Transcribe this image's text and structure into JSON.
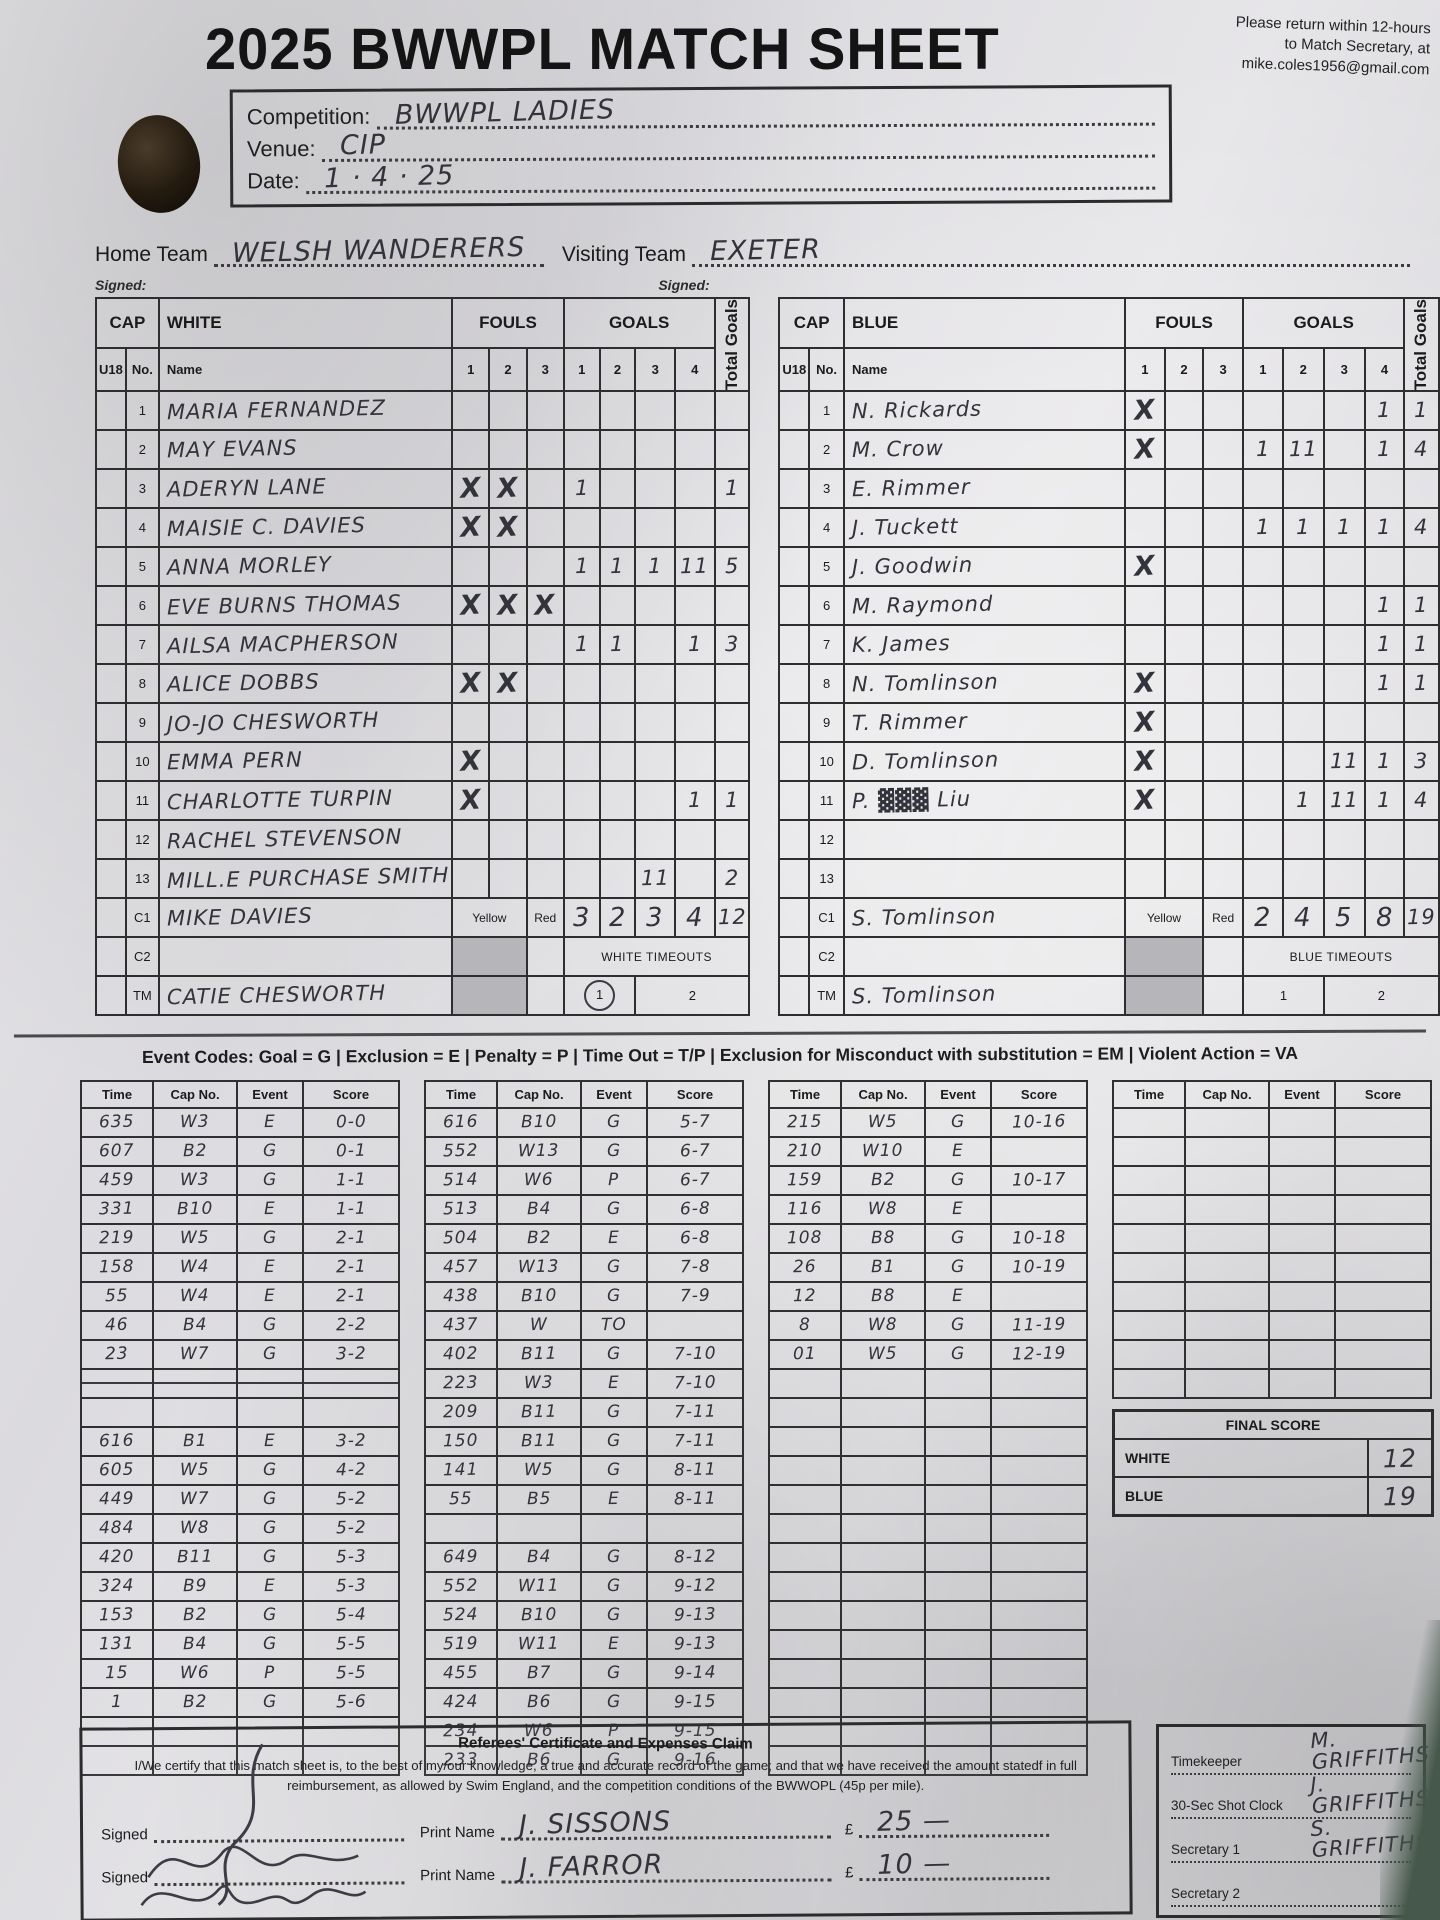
{
  "colors": {
    "ink": "#32333b",
    "paper": "#dfdee1",
    "shade": "#b6b5b9",
    "table_border": "#2e2e2e"
  },
  "header": {
    "title": "2025 BWWPL MATCH SHEET",
    "note_lines": [
      "Please return within 12-hours",
      "to Match Secretary, at",
      "mike.coles1956@gmail.com"
    ]
  },
  "info": {
    "competition_label": "Competition:",
    "competition_value": "BWWPL  LADIES",
    "venue_label": "Venue:",
    "venue_value": "CIP",
    "date_label": "Date:",
    "date_value": "1 · 4 · 25"
  },
  "teams": {
    "home_label": "Home Team",
    "home_value": "WELSH  WANDERERS",
    "visiting_label": "Visiting Team",
    "visiting_value": "EXETER",
    "signed_label": "Signed:"
  },
  "roster_headers": {
    "cap": "CAP",
    "u18": "U18",
    "no": "No.",
    "name": "Name",
    "fouls": "FOULS",
    "goals": "GOALS",
    "total": "Total Goals",
    "foul_cols": [
      "1",
      "2",
      "3"
    ],
    "goal_cols": [
      "1",
      "2",
      "3",
      "4"
    ],
    "yellow": "Yellow",
    "red": "Red",
    "c1": "C1",
    "c2": "C2",
    "tm": "TM"
  },
  "white_team": {
    "label": "WHITE",
    "timeouts_label": "WHITE TIMEOUTS",
    "timeout_1": "1",
    "timeout_2": "2",
    "timeout_1_circled": true,
    "players": [
      {
        "no": "1",
        "name": "MARIA FERNANDEZ",
        "fouls": [
          "",
          "",
          ""
        ],
        "goals": [
          "",
          "",
          "",
          ""
        ],
        "total": ""
      },
      {
        "no": "2",
        "name": "MAY EVANS",
        "fouls": [
          "",
          "",
          ""
        ],
        "goals": [
          "",
          "",
          "",
          ""
        ],
        "total": ""
      },
      {
        "no": "3",
        "name": "ADERYN LANE",
        "fouls": [
          "X",
          "X",
          ""
        ],
        "goals": [
          "1",
          "",
          "",
          ""
        ],
        "total": "1"
      },
      {
        "no": "4",
        "name": "MAISIE C. DAVIES",
        "fouls": [
          "X",
          "X",
          ""
        ],
        "goals": [
          "",
          "",
          "",
          ""
        ],
        "total": ""
      },
      {
        "no": "5",
        "name": "ANNA MORLEY",
        "fouls": [
          "",
          "",
          ""
        ],
        "goals": [
          "1",
          "1",
          "1",
          "11"
        ],
        "total": "5"
      },
      {
        "no": "6",
        "name": "EVE BURNS THOMAS",
        "fouls": [
          "X",
          "X",
          "X"
        ],
        "goals": [
          "",
          "",
          "",
          ""
        ],
        "total": ""
      },
      {
        "no": "7",
        "name": "AILSA MACPHERSON",
        "fouls": [
          "",
          "",
          ""
        ],
        "goals": [
          "1",
          "1",
          "",
          "1"
        ],
        "total": "3"
      },
      {
        "no": "8",
        "name": "ALICE DOBBS",
        "fouls": [
          "X",
          "X",
          ""
        ],
        "goals": [
          "",
          "",
          "",
          ""
        ],
        "total": ""
      },
      {
        "no": "9",
        "name": "JO-JO CHESWORTH",
        "fouls": [
          "",
          "",
          ""
        ],
        "goals": [
          "",
          "",
          "",
          ""
        ],
        "total": ""
      },
      {
        "no": "10",
        "name": "EMMA PERN",
        "fouls": [
          "X",
          "",
          ""
        ],
        "goals": [
          "",
          "",
          "",
          ""
        ],
        "total": ""
      },
      {
        "no": "11",
        "name": "CHARLOTTE TURPIN",
        "fouls": [
          "X",
          "",
          ""
        ],
        "goals": [
          "",
          "",
          "",
          "1"
        ],
        "total": "1"
      },
      {
        "no": "12",
        "name": "RACHEL STEVENSON",
        "fouls": [
          "",
          "",
          ""
        ],
        "goals": [
          "",
          "",
          "",
          ""
        ],
        "total": ""
      },
      {
        "no": "13",
        "name": "MILL.E PURCHASE SMITH",
        "fouls": [
          "",
          "",
          ""
        ],
        "goals": [
          "",
          "",
          "11",
          ""
        ],
        "total": "2"
      }
    ],
    "c1_name": "MIKE DAVIES",
    "c1_quarters": [
      "3",
      "2",
      "3",
      "4"
    ],
    "c1_total": "12",
    "tm_name": "CATIE CHESWORTH"
  },
  "blue_team": {
    "label": "BLUE",
    "timeouts_label": "BLUE TIMEOUTS",
    "timeout_1": "1",
    "timeout_2": "2",
    "timeout_1_circled": false,
    "players": [
      {
        "no": "1",
        "name": "N. Rickards",
        "fouls": [
          "X",
          "",
          ""
        ],
        "goals": [
          "",
          "",
          "",
          "1"
        ],
        "total": "1"
      },
      {
        "no": "2",
        "name": "M. Crow",
        "fouls": [
          "X",
          "",
          ""
        ],
        "goals": [
          "1",
          "11",
          "",
          "1"
        ],
        "total": "4"
      },
      {
        "no": "3",
        "name": "E. Rimmer",
        "fouls": [
          "",
          "",
          ""
        ],
        "goals": [
          "",
          "",
          "",
          ""
        ],
        "total": ""
      },
      {
        "no": "4",
        "name": "J. Tuckett",
        "fouls": [
          "",
          "",
          ""
        ],
        "goals": [
          "1",
          "1",
          "1",
          "1"
        ],
        "total": "4"
      },
      {
        "no": "5",
        "name": "J. Goodwin",
        "fouls": [
          "X",
          "",
          ""
        ],
        "goals": [
          "",
          "",
          "",
          ""
        ],
        "total": ""
      },
      {
        "no": "6",
        "name": "M. Raymond",
        "fouls": [
          "",
          "",
          ""
        ],
        "goals": [
          "",
          "",
          "",
          "1"
        ],
        "total": "1"
      },
      {
        "no": "7",
        "name": "K. James",
        "fouls": [
          "",
          "",
          ""
        ],
        "goals": [
          "",
          "",
          "",
          "1"
        ],
        "total": "1"
      },
      {
        "no": "8",
        "name": "N. Tomlinson",
        "fouls": [
          "X",
          "",
          ""
        ],
        "goals": [
          "",
          "",
          "",
          "1"
        ],
        "total": "1"
      },
      {
        "no": "9",
        "name": "T. Rimmer",
        "fouls": [
          "X",
          "",
          ""
        ],
        "goals": [
          "",
          "",
          "",
          ""
        ],
        "total": ""
      },
      {
        "no": "10",
        "name": "D. Tomlinson",
        "fouls": [
          "X",
          "",
          ""
        ],
        "goals": [
          "",
          "",
          "11",
          "1"
        ],
        "total": "3"
      },
      {
        "no": "11",
        "name": "P. ▓▓▓ Liu",
        "fouls": [
          "X",
          "",
          ""
        ],
        "goals": [
          "",
          "1",
          "11",
          "1"
        ],
        "total": "4"
      },
      {
        "no": "12",
        "name": "",
        "fouls": [
          "",
          "",
          ""
        ],
        "goals": [
          "",
          "",
          "",
          ""
        ],
        "total": ""
      },
      {
        "no": "13",
        "name": "",
        "fouls": [
          "",
          "",
          ""
        ],
        "goals": [
          "",
          "",
          "",
          ""
        ],
        "total": ""
      }
    ],
    "c1_name": "S. Tomlinson",
    "c1_quarters": [
      "2",
      "4",
      "5",
      "8"
    ],
    "c1_total": "19",
    "tm_name": "S. Tomlinson"
  },
  "event_codes": "Event Codes: Goal = G | Exclusion = E | Penalty = P | Time Out = T/P | Exclusion for Misconduct with substitution = EM | Violent Action = VA",
  "event_log": {
    "headers": [
      "Time",
      "Cap No.",
      "Event",
      "Score"
    ],
    "arrow": {
      "table": 0,
      "row": 9
    },
    "tables": [
      [
        [
          "635",
          "W3",
          "E",
          "0-0"
        ],
        [
          "607",
          "B2",
          "G",
          "0-1"
        ],
        [
          "459",
          "W3",
          "G",
          "1-1"
        ],
        [
          "331",
          "B10",
          "E",
          "1-1"
        ],
        [
          "219",
          "W5",
          "G",
          "2-1"
        ],
        [
          "158",
          "W4",
          "E",
          "2-1"
        ],
        [
          "55",
          "W4",
          "E",
          "2-1"
        ],
        [
          "46",
          "B4",
          "G",
          "2-2"
        ],
        [
          "23",
          "W7",
          "G",
          "3-2"
        ],
        [
          "",
          "",
          "",
          ""
        ],
        [
          "",
          "",
          "",
          ""
        ],
        [
          "616",
          "B1",
          "E",
          "3-2"
        ],
        [
          "605",
          "W5",
          "G",
          "4-2"
        ],
        [
          "449",
          "W7",
          "G",
          "5-2"
        ],
        [
          "484",
          "W8",
          "G",
          "5-2"
        ],
        [
          "420",
          "B11",
          "G",
          "5-3"
        ],
        [
          "324",
          "B9",
          "E",
          "5-3"
        ],
        [
          "153",
          "B2",
          "G",
          "5-4"
        ],
        [
          "131",
          "B4",
          "G",
          "5-5"
        ],
        [
          "15",
          "W6",
          "P",
          "5-5"
        ],
        [
          "1",
          "B2",
          "G",
          "5-6"
        ],
        [
          "",
          "",
          "",
          ""
        ],
        [
          "",
          "",
          "",
          ""
        ]
      ],
      [
        [
          "616",
          "B10",
          "G",
          "5-7"
        ],
        [
          "552",
          "W13",
          "G",
          "6-7"
        ],
        [
          "514",
          "W6",
          "P",
          "6-7"
        ],
        [
          "513",
          "B4",
          "G",
          "6-8"
        ],
        [
          "504",
          "B2",
          "E",
          "6-8"
        ],
        [
          "457",
          "W13",
          "G",
          "7-8"
        ],
        [
          "438",
          "B10",
          "G",
          "7-9"
        ],
        [
          "437",
          "W",
          "TO",
          ""
        ],
        [
          "402",
          "B11",
          "G",
          "7-10"
        ],
        [
          "223",
          "W3",
          "E",
          "7-10"
        ],
        [
          "209",
          "B11",
          "G",
          "7-11"
        ],
        [
          "150",
          "B11",
          "G",
          "7-11"
        ],
        [
          "141",
          "W5",
          "G",
          "8-11"
        ],
        [
          "55",
          "B5",
          "E",
          "8-11"
        ],
        [
          "",
          "",
          "",
          ""
        ],
        [
          "649",
          "B4",
          "G",
          "8-12"
        ],
        [
          "552",
          "W11",
          "G",
          "9-12"
        ],
        [
          "524",
          "B10",
          "G",
          "9-13"
        ],
        [
          "519",
          "W11",
          "E",
          "9-13"
        ],
        [
          "455",
          "B7",
          "G",
          "9-14"
        ],
        [
          "424",
          "B6",
          "G",
          "9-15"
        ],
        [
          "234",
          "W6",
          "P",
          "9-15"
        ],
        [
          "233",
          "B6",
          "G",
          "9-16"
        ]
      ],
      [
        [
          "215",
          "W5",
          "G",
          "10-16"
        ],
        [
          "210",
          "W10",
          "E",
          ""
        ],
        [
          "159",
          "B2",
          "G",
          "10-17"
        ],
        [
          "116",
          "W8",
          "E",
          ""
        ],
        [
          "108",
          "B8",
          "G",
          "10-18"
        ],
        [
          "26",
          "B1",
          "G",
          "10-19"
        ],
        [
          "12",
          "B8",
          "E",
          ""
        ],
        [
          "8",
          "W8",
          "G",
          "11-19"
        ],
        [
          "01",
          "W5",
          "G",
          "12-19"
        ],
        [
          "",
          "",
          "",
          ""
        ],
        [
          "",
          "",
          "",
          ""
        ],
        [
          "",
          "",
          "",
          ""
        ],
        [
          "",
          "",
          "",
          ""
        ],
        [
          "",
          "",
          "",
          ""
        ],
        [
          "",
          "",
          "",
          ""
        ],
        [
          "",
          "",
          "",
          ""
        ],
        [
          "",
          "",
          "",
          ""
        ],
        [
          "",
          "",
          "",
          ""
        ],
        [
          "",
          "",
          "",
          ""
        ],
        [
          "",
          "",
          "",
          ""
        ],
        [
          "",
          "",
          "",
          ""
        ],
        [
          "",
          "",
          "",
          ""
        ],
        [
          "",
          "",
          "",
          ""
        ]
      ],
      [
        [
          "",
          "",
          "",
          ""
        ],
        [
          "",
          "",
          "",
          ""
        ],
        [
          "",
          "",
          "",
          ""
        ],
        [
          "",
          "",
          "",
          ""
        ],
        [
          "",
          "",
          "",
          ""
        ],
        [
          "",
          "",
          "",
          ""
        ],
        [
          "",
          "",
          "",
          ""
        ],
        [
          "",
          "",
          "",
          ""
        ],
        [
          "",
          "",
          "",
          ""
        ],
        [
          "",
          "",
          "",
          ""
        ]
      ]
    ]
  },
  "final_score": {
    "title": "FINAL SCORE",
    "rows": [
      {
        "label": "WHITE",
        "value": "12"
      },
      {
        "label": "BLUE",
        "value": "19"
      }
    ]
  },
  "certificate": {
    "title": "Referees' Certificate and Expenses Claim",
    "body": "I/We certify that this match sheet is, to the best of my/our knowledge, a true and accurate record of the game; and that we have received the amount statedf in full reimbursement, as allowed by Swim England, and the competition conditions of the BWWOPL (45p per mile).",
    "signed_label": "Signed",
    "print_label": "Print Name",
    "currency": "£",
    "entries": [
      {
        "print_name": "J. SISSONS",
        "amount": "25 —"
      },
      {
        "print_name": "J. FARROR",
        "amount": "10 —"
      }
    ]
  },
  "officials_panel": {
    "rows": [
      {
        "label": "Timekeeper",
        "value": "M. GRIFFITHS"
      },
      {
        "label": "30-Sec Shot Clock",
        "value": "J. GRIFFITHS"
      },
      {
        "label": "Secretary 1",
        "value": "S. GRIFFITHS"
      },
      {
        "label": "Secretary 2",
        "value": ""
      }
    ]
  }
}
